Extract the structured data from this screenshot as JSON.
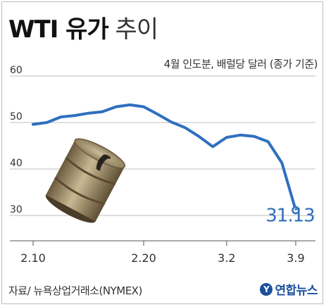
{
  "title": {
    "bold": "WTI 유가",
    "rest": " 추이"
  },
  "subtitle": "4월 인도분,  배럴당 달러 (종가 기준)",
  "source": "자료/ 뉴욕상업거래소(NYMEX)",
  "logo": {
    "mark": "Y",
    "text": "연합뉴스"
  },
  "colors": {
    "line": "#2f6fbf",
    "grid": "#bcbcbc",
    "last_label": "#2f6fbf"
  },
  "icons": {
    "barrel": "oil-barrel-illustration"
  },
  "chart_data": {
    "type": "line",
    "title": "WTI 유가 추이",
    "ylim": [
      25,
      65
    ],
    "yticks": [
      30,
      40,
      50,
      60
    ],
    "xticks": [
      {
        "index": 0,
        "label": "2.10"
      },
      {
        "index": 8,
        "label": "2.20"
      },
      {
        "index": 14,
        "label": "3.2"
      },
      {
        "index": 19,
        "label": "3.9"
      }
    ],
    "grid": true,
    "series": [
      {
        "values": [
          49.6,
          50.0,
          51.2,
          51.5,
          52.0,
          52.3,
          53.4,
          53.8,
          53.4,
          51.8,
          50.1,
          48.9,
          47.0,
          44.8,
          46.8,
          47.3,
          47.0,
          45.9,
          41.3,
          31.13
        ]
      }
    ],
    "last_value_label": "31.13"
  }
}
